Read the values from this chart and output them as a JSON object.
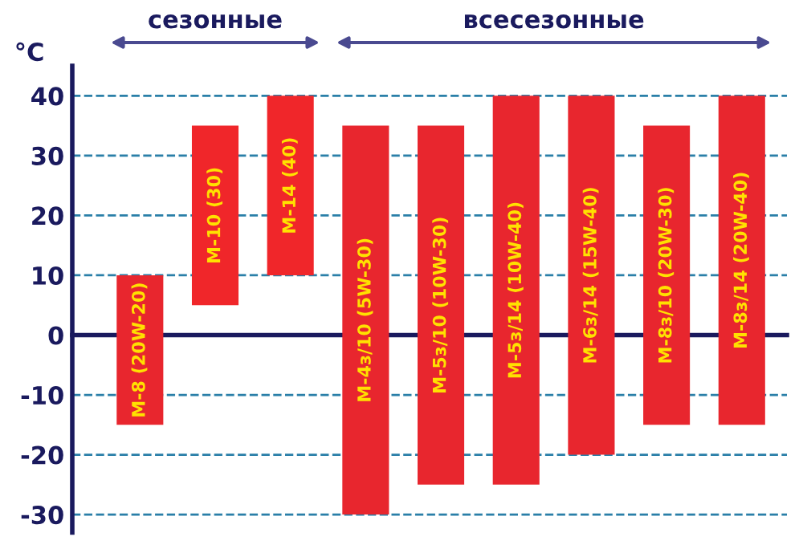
{
  "chart_data": {
    "type": "bar",
    "ylabel": "°C",
    "categories": [
      "М-8 (20W-20)",
      "М-10 (30)",
      "М-14 (40)",
      "М-4з/10 (5W-30)",
      "М-5з/10 (10W-30)",
      "М-5з/14 (10W-40)",
      "М-6з/14 (15W-40)",
      "М-8з/10 (20W-30)",
      "М-8з/14 (20W-40)"
    ],
    "base": [
      -15,
      5,
      10,
      -30,
      -25,
      -25,
      -20,
      -15,
      -15
    ],
    "values": [
      25,
      30,
      30,
      65,
      60,
      65,
      60,
      50,
      55
    ],
    "colors": [
      "#e8262e",
      "#f0262a",
      "#f0262a",
      "#e8262e",
      "#e8262e",
      "#e8262e",
      "#e8262e",
      "#e8262e",
      "#e8262e"
    ],
    "ylim": [
      -33,
      45
    ],
    "yticks": [
      -30,
      -20,
      -10,
      0,
      10,
      20,
      30,
      40
    ],
    "grid": "y",
    "annotations": [
      "сезонные",
      "всесезонные"
    ]
  }
}
